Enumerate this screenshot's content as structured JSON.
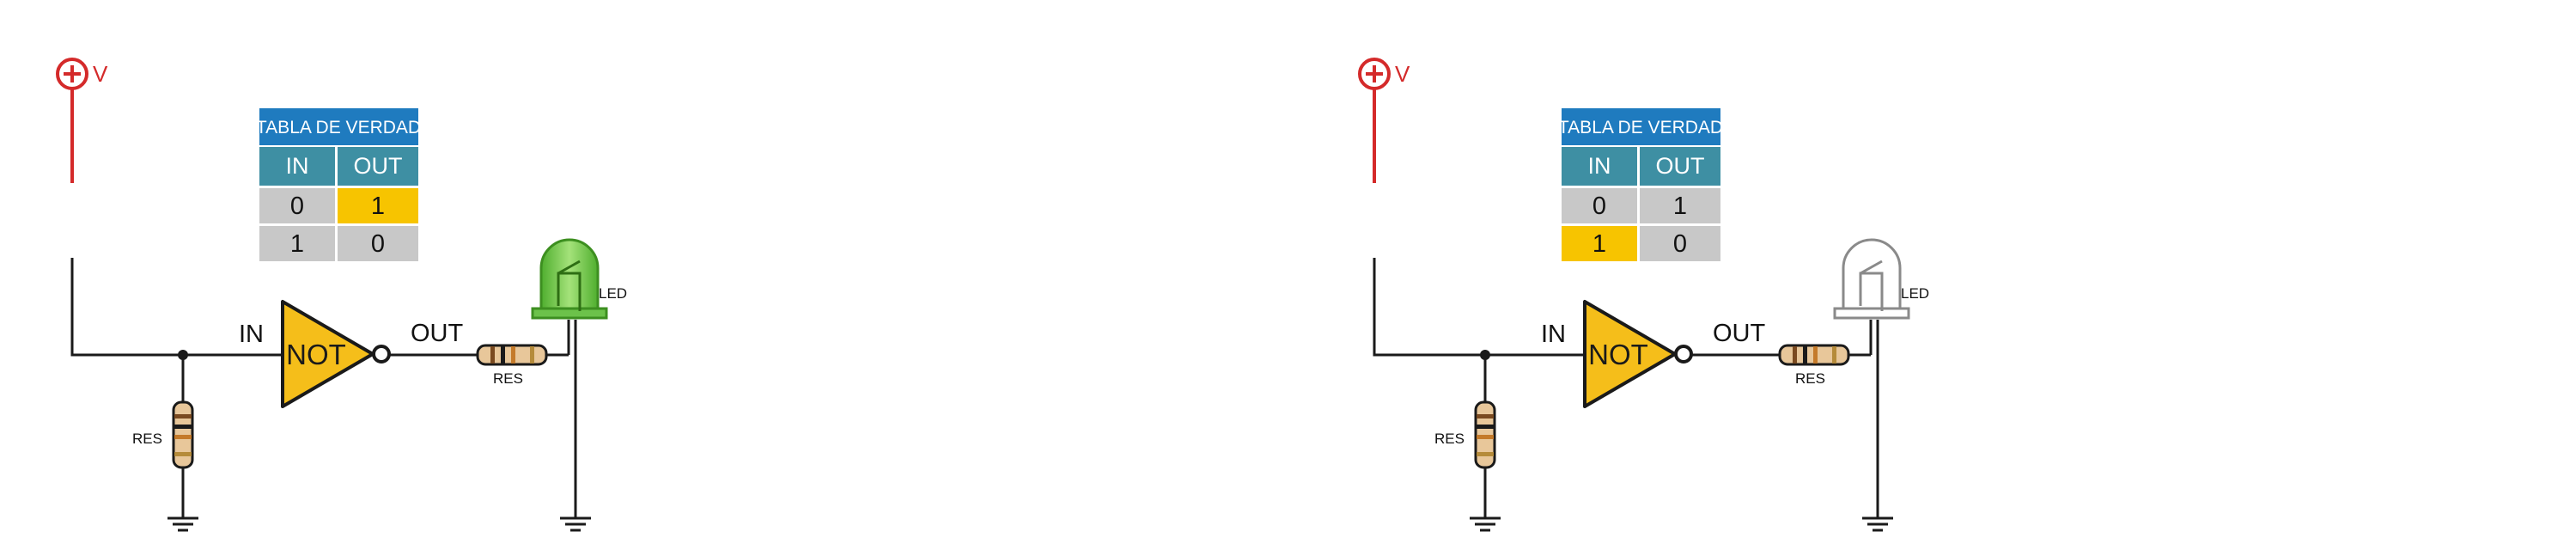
{
  "circuits": [
    {
      "supply_label": "V",
      "table": {
        "title": "TABLA DE VERDAD",
        "headers": [
          "IN",
          "OUT"
        ],
        "rows": [
          [
            "0",
            "1"
          ],
          [
            "1",
            "0"
          ]
        ],
        "highlight": {
          "row": 0,
          "col": 1
        }
      },
      "gate_label": "NOT",
      "in_label": "IN",
      "out_label": "OUT",
      "res_out_label": "RES",
      "res_in_label": "RES",
      "led_label": "LED",
      "led_on": true
    },
    {
      "supply_label": "V",
      "table": {
        "title": "TABLA DE VERDAD",
        "headers": [
          "IN",
          "OUT"
        ],
        "rows": [
          [
            "0",
            "1"
          ],
          [
            "1",
            "0"
          ]
        ],
        "highlight": {
          "row": 1,
          "col": 0
        }
      },
      "gate_label": "NOT",
      "in_label": "IN",
      "out_label": "OUT",
      "res_out_label": "RES",
      "res_in_label": "RES",
      "led_label": "LED",
      "led_on": false
    }
  ],
  "colors": {
    "wire": "#1a1a1a",
    "supply": "#d42a2a",
    "table_title_bg": "#1f7bbf",
    "table_header_bg": "#3e8fa3",
    "cell_bg": "#c8c8c8",
    "highlight_bg": "#f7c400",
    "gate_fill": "#f5be1a",
    "led_on": "#6cc24a",
    "led_off": "#9a9a9a",
    "resistor": "#e8c79a"
  }
}
